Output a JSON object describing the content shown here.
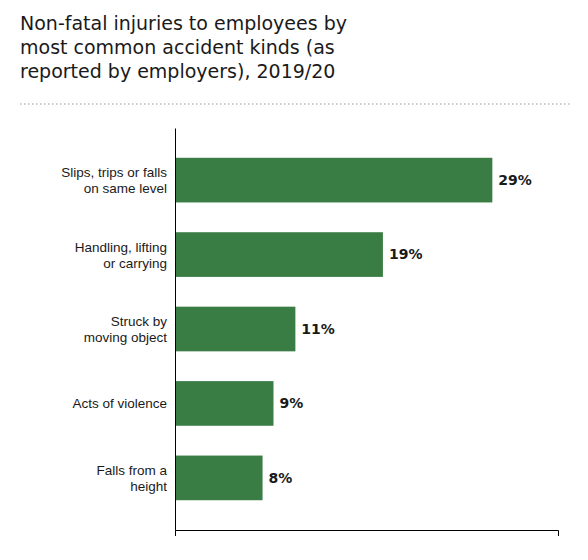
{
  "chart_data": {
    "type": "bar",
    "orientation": "horizontal",
    "title": "Non-fatal injuries to employees by\nmost common accident kinds (as\nreported by employers), 2019/20",
    "categories": [
      "Falls from a\nheight",
      "Acts of violence",
      "Struck by\nmoving object",
      "Handling, lifting\nor carrying",
      "Slips, trips or falls\non same level"
    ],
    "values": [
      8,
      9,
      11,
      19,
      29
    ],
    "value_labels": [
      "8%",
      "9%",
      "11%",
      "19%",
      "29%"
    ],
    "color": "#3a7d44",
    "xlim": [
      0,
      35
    ],
    "xticks": [],
    "data_labels": true,
    "tick_labels": "y",
    "grid": false
  }
}
